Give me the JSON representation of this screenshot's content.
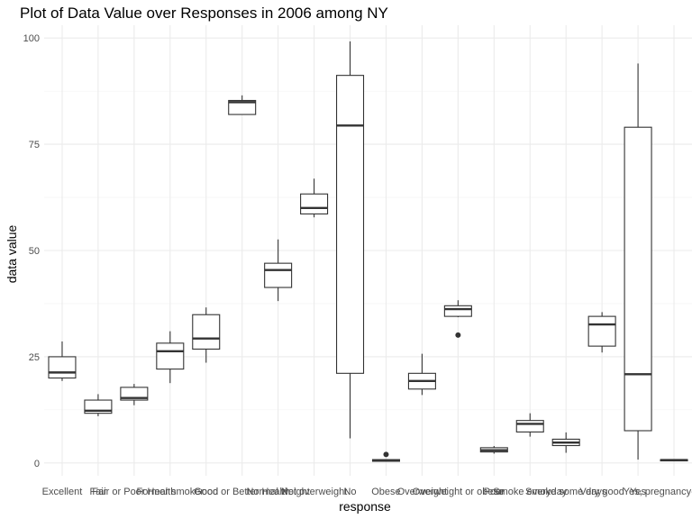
{
  "chart_data": {
    "type": "box",
    "title": "Plot of Data Value over Responses in 2006 among NY",
    "xlabel": "response",
    "ylabel": "data value",
    "ylim": [
      -3,
      103
    ],
    "yticks": [
      0,
      25,
      50,
      75,
      100
    ],
    "grid": true,
    "categories": [
      {
        "label": "Excellent",
        "min": 19.3,
        "q1": 20.0,
        "median": 21.3,
        "q3": 25.0,
        "max": 28.6,
        "outliers": []
      },
      {
        "label": "Fair",
        "min": 11.0,
        "q1": 11.7,
        "median": 12.3,
        "q3": 14.8,
        "max": 16.2,
        "outliers": []
      },
      {
        "label": "Fair or Poor Health",
        "min": 13.6,
        "q1": 14.8,
        "median": 15.3,
        "q3": 17.8,
        "max": 18.6,
        "outliers": []
      },
      {
        "label": "Former smoker",
        "min": 18.8,
        "q1": 22.1,
        "median": 26.3,
        "q3": 28.2,
        "max": 31.0,
        "outliers": []
      },
      {
        "label": "Good",
        "min": 23.6,
        "q1": 26.8,
        "median": 29.3,
        "q3": 34.9,
        "max": 36.6,
        "outliers": []
      },
      {
        "label": "Good or Better Health",
        "min": 82.0,
        "q1": 82.0,
        "median": 84.9,
        "q3": 85.3,
        "max": 86.5,
        "outliers": []
      },
      {
        "label": "Normal weight",
        "min": 38.1,
        "q1": 41.3,
        "median": 45.4,
        "q3": 47.0,
        "max": 52.6,
        "outliers": []
      },
      {
        "label": "Not overweight",
        "min": 57.8,
        "q1": 58.6,
        "median": 60.0,
        "q3": 63.3,
        "max": 66.9,
        "outliers": []
      },
      {
        "label": "No",
        "min": 5.8,
        "q1": 21.1,
        "median": 79.4,
        "q3": 91.2,
        "max": 99.2,
        "outliers": []
      },
      {
        "label": "Obese",
        "min": 0.3,
        "q1": 0.4,
        "median": 0.6,
        "q3": 0.8,
        "max": 0.9,
        "outliers": [
          2.0
        ]
      },
      {
        "label": "Overweight",
        "min": 16.0,
        "q1": 17.4,
        "median": 19.3,
        "q3": 21.1,
        "max": 25.7,
        "outliers": []
      },
      {
        "label": "Overweight or obese",
        "min": 34.3,
        "q1": 34.5,
        "median": 36.2,
        "q3": 37.0,
        "max": 38.3,
        "outliers": [
          30.1
        ]
      },
      {
        "label": "Poor",
        "min": 2.2,
        "q1": 2.6,
        "median": 3.0,
        "q3": 3.6,
        "max": 4.0,
        "outliers": []
      },
      {
        "label": "Smoke everyday",
        "min": 6.2,
        "q1": 7.3,
        "median": 9.2,
        "q3": 10.0,
        "max": 11.7,
        "outliers": []
      },
      {
        "label": "Smoke some days",
        "min": 2.4,
        "q1": 4.1,
        "median": 4.8,
        "q3": 5.6,
        "max": 7.2,
        "outliers": []
      },
      {
        "label": "Very good",
        "min": 26.0,
        "q1": 27.5,
        "median": 32.6,
        "q3": 34.5,
        "max": 35.5,
        "outliers": []
      },
      {
        "label": "Yes",
        "min": 0.8,
        "q1": 7.6,
        "median": 20.9,
        "q3": 79.0,
        "max": 94.0,
        "outliers": []
      },
      {
        "label": "Yes, pregnancy-related",
        "min": 0.4,
        "q1": 0.5,
        "median": 0.7,
        "q3": 0.8,
        "max": 0.9,
        "outliers": []
      }
    ]
  }
}
